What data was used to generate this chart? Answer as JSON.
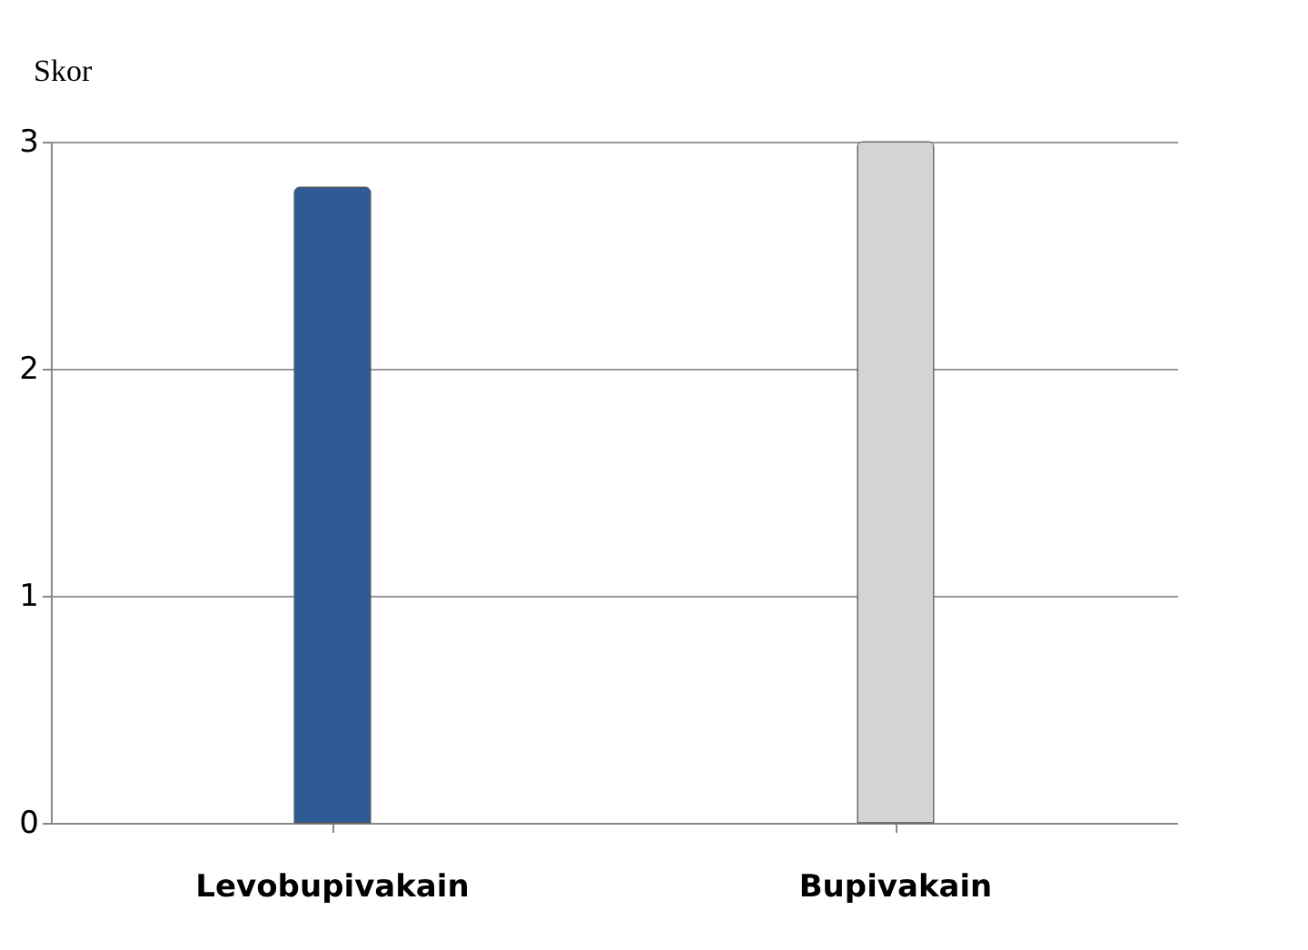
{
  "chart_data": {
    "type": "bar",
    "ylabel": "Skor",
    "categories": [
      "Levobupivakain",
      "Bupivakain"
    ],
    "values": [
      2.8,
      3.0
    ],
    "colors": [
      "#2f5b95",
      "#d4d4d4"
    ],
    "ylim": [
      0,
      3
    ],
    "yticks": [
      0,
      1,
      2,
      3
    ],
    "grid": "y"
  }
}
